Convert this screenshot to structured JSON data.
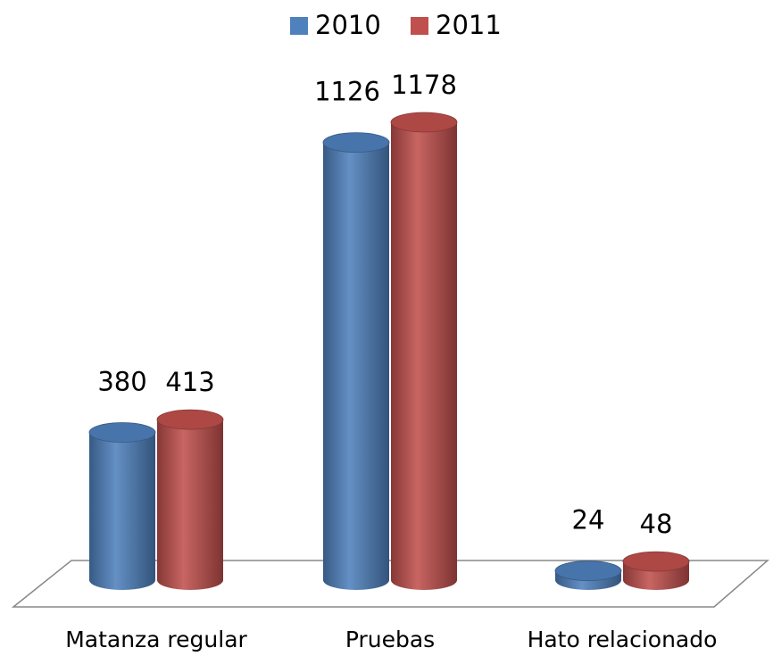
{
  "chart_data": {
    "type": "bar3d",
    "categories": [
      "Matanza regular",
      "Pruebas",
      "Hato relacionado"
    ],
    "series": [
      {
        "name": "2010",
        "color": "#4f81bd",
        "values": [
          380,
          1126,
          24
        ]
      },
      {
        "name": "2011",
        "color": "#c0504d",
        "values": [
          413,
          1178,
          48
        ]
      }
    ],
    "legend": "top"
  }
}
